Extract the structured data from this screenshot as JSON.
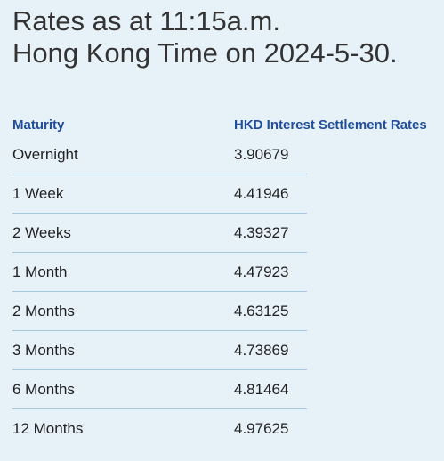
{
  "title": {
    "line1": "Rates as at 11:15a.m.",
    "line2": "Hong Kong Time on 2024-5-30."
  },
  "table": {
    "headers": {
      "maturity": "Maturity",
      "rate": "HKD Interest Settlement Rates"
    },
    "rows": [
      {
        "maturity": "Overnight",
        "rate": "3.90679"
      },
      {
        "maturity": "1 Week",
        "rate": "4.41946"
      },
      {
        "maturity": "2 Weeks",
        "rate": "4.39327"
      },
      {
        "maturity": "1 Month",
        "rate": "4.47923"
      },
      {
        "maturity": "2 Months",
        "rate": "4.63125"
      },
      {
        "maturity": "3 Months",
        "rate": "4.73869"
      },
      {
        "maturity": "6 Months",
        "rate": "4.81464"
      },
      {
        "maturity": "12 Months",
        "rate": "4.97625"
      }
    ]
  },
  "colors": {
    "background": "#e7f1f8",
    "header_text": "#1f4e9c",
    "row_divider": "#a6c6dc"
  }
}
